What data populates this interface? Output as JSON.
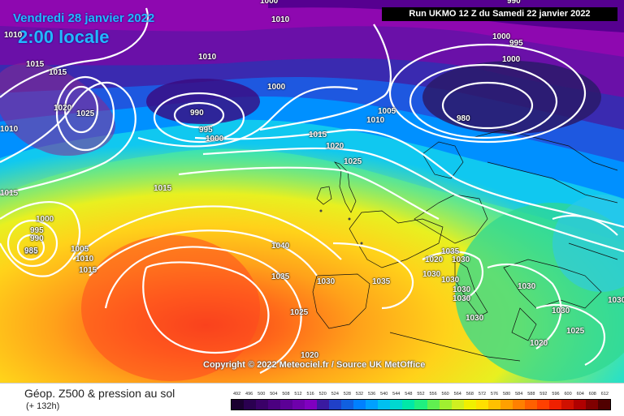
{
  "header": {
    "date": "Vendredi 28 janvier 2022",
    "time": "2:00 locale",
    "run": "Run UKMO 12 Z du Samedi 22 janvier 2022"
  },
  "copyright": "Copyright © 2022 Meteociel.fr / Source UK MetOffice",
  "footer": {
    "title": "Géop. Z500 & pression au sol",
    "subtitle": "(+ 132h)"
  },
  "isobars": [
    "1010",
    "1000",
    "1010",
    "1010",
    "1000",
    "995",
    "990",
    "1000",
    "985",
    "1015",
    "1015",
    "1020",
    "1025",
    "1010",
    "990",
    "995",
    "1000",
    "1000",
    "1005",
    "1010",
    "980",
    "1015",
    "1020",
    "1025",
    "1015",
    "1015",
    "1000",
    "995",
    "990",
    "985",
    "1005",
    "1010",
    "1015",
    "1040",
    "1035",
    "1030",
    "1035",
    "1025",
    "1020",
    "1030",
    "1035",
    "1030",
    "1030",
    "1030",
    "1030",
    "1030",
    "1030",
    "1030",
    "1025",
    "1030",
    "1020",
    "1020"
  ],
  "legend": {
    "labels": [
      "492",
      "496",
      "500",
      "504",
      "508",
      "512",
      "516",
      "520",
      "524",
      "528",
      "532",
      "536",
      "540",
      "544",
      "548",
      "552",
      "556",
      "560",
      "564",
      "568",
      "572",
      "576",
      "580",
      "584",
      "588",
      "592",
      "596",
      "600",
      "604",
      "608",
      "612"
    ],
    "colors": [
      "#1a0030",
      "#2a0050",
      "#3a0068",
      "#4b0080",
      "#5c0096",
      "#6e00ab",
      "#8000c0",
      "#3a1aa0",
      "#2040c8",
      "#1060e0",
      "#0080ff",
      "#00a0ff",
      "#00c0f0",
      "#00d8d0",
      "#00e8a8",
      "#20f080",
      "#60f050",
      "#a0f030",
      "#d0f020",
      "#f0f000",
      "#ffe000",
      "#ffc000",
      "#ffa000",
      "#ff8000",
      "#ff6000",
      "#ff4000",
      "#f02000",
      "#d01000",
      "#b00000",
      "#800000",
      "#500000"
    ]
  }
}
